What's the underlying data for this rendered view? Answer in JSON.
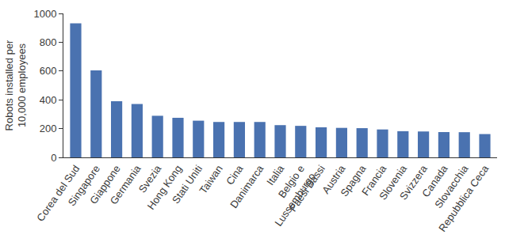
{
  "chart_data": {
    "type": "bar",
    "y_label": "Robots installed per 10,000 employees",
    "categories": [
      "Corea del Sud",
      "Singapore",
      "Giappone",
      "Germania",
      "Svezia",
      "Hong Kong",
      "Stati Uniti",
      "Taiwan",
      "Cina",
      "Danimarca",
      "Italia",
      "Belgio e Lussemburgo",
      "Paesi Bassi",
      "Austria",
      "Spagna",
      "Francia",
      "Slovenia",
      "Svizzera",
      "Canada",
      "Slovacchia",
      "Repubblica Ceca"
    ],
    "values": [
      932,
      605,
      390,
      371,
      289,
      275,
      255,
      246,
      246,
      246,
      224,
      219,
      209,
      205,
      203,
      194,
      182,
      180,
      176,
      175,
      162
    ],
    "color": "#4a72b0",
    "ylim": [
      0,
      1000
    ],
    "yticks": [
      0,
      200,
      400,
      600,
      800,
      1000
    ],
    "grid": false
  }
}
